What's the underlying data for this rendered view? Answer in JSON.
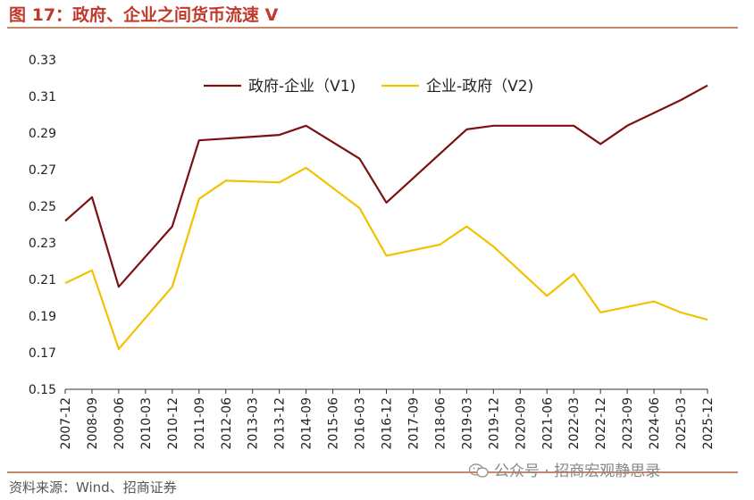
{
  "figure": {
    "title": "图 17：政府、企业之间货币流速 V",
    "source": "资料来源：Wind、招商证券",
    "watermark": "公众号 · 招商宏观静思录",
    "watermark_icon": "wechat-icon"
  },
  "colors": {
    "title": "#c0392b",
    "rule": "#c8866a",
    "series_v1": "#7b1113",
    "series_v2": "#f2c200"
  },
  "chart_data": {
    "type": "line",
    "title": "",
    "xlabel": "",
    "ylabel": "",
    "ylim": [
      0.15,
      0.33
    ],
    "yticks": [
      "0.15",
      "0.17",
      "0.19",
      "0.21",
      "0.23",
      "0.25",
      "0.27",
      "0.29",
      "0.31",
      "0.33"
    ],
    "grid": false,
    "legend_position": "top-center",
    "categories": [
      "2007-12",
      "2008-09",
      "2009-06",
      "2010-03",
      "2010-12",
      "2011-09",
      "2012-06",
      "2013-03",
      "2013-12",
      "2014-09",
      "2015-06",
      "2016-03",
      "2016-12",
      "2017-09",
      "2018-06",
      "2019-03",
      "2019-12",
      "2020-09",
      "2021-06",
      "2022-03",
      "2022-12",
      "2023-09",
      "2024-06",
      "2025-03",
      "2025-12"
    ],
    "series": [
      {
        "name": "政府-企业（V1)",
        "color": "#7b1113",
        "values": [
          0.242,
          0.255,
          0.206,
          null,
          0.239,
          0.286,
          0.287,
          null,
          0.289,
          0.294,
          null,
          0.276,
          0.252,
          null,
          null,
          0.292,
          0.294,
          null,
          0.294,
          0.294,
          0.284,
          0.294,
          null,
          0.308,
          0.316
        ]
      },
      {
        "name": "企业-政府（V2)",
        "color": "#f2c200",
        "values": [
          0.208,
          0.215,
          0.172,
          null,
          0.206,
          0.254,
          0.264,
          null,
          0.263,
          0.271,
          null,
          0.249,
          0.223,
          null,
          0.229,
          0.239,
          0.228,
          null,
          0.201,
          0.213,
          0.192,
          null,
          0.198,
          0.192,
          0.188
        ]
      }
    ]
  }
}
